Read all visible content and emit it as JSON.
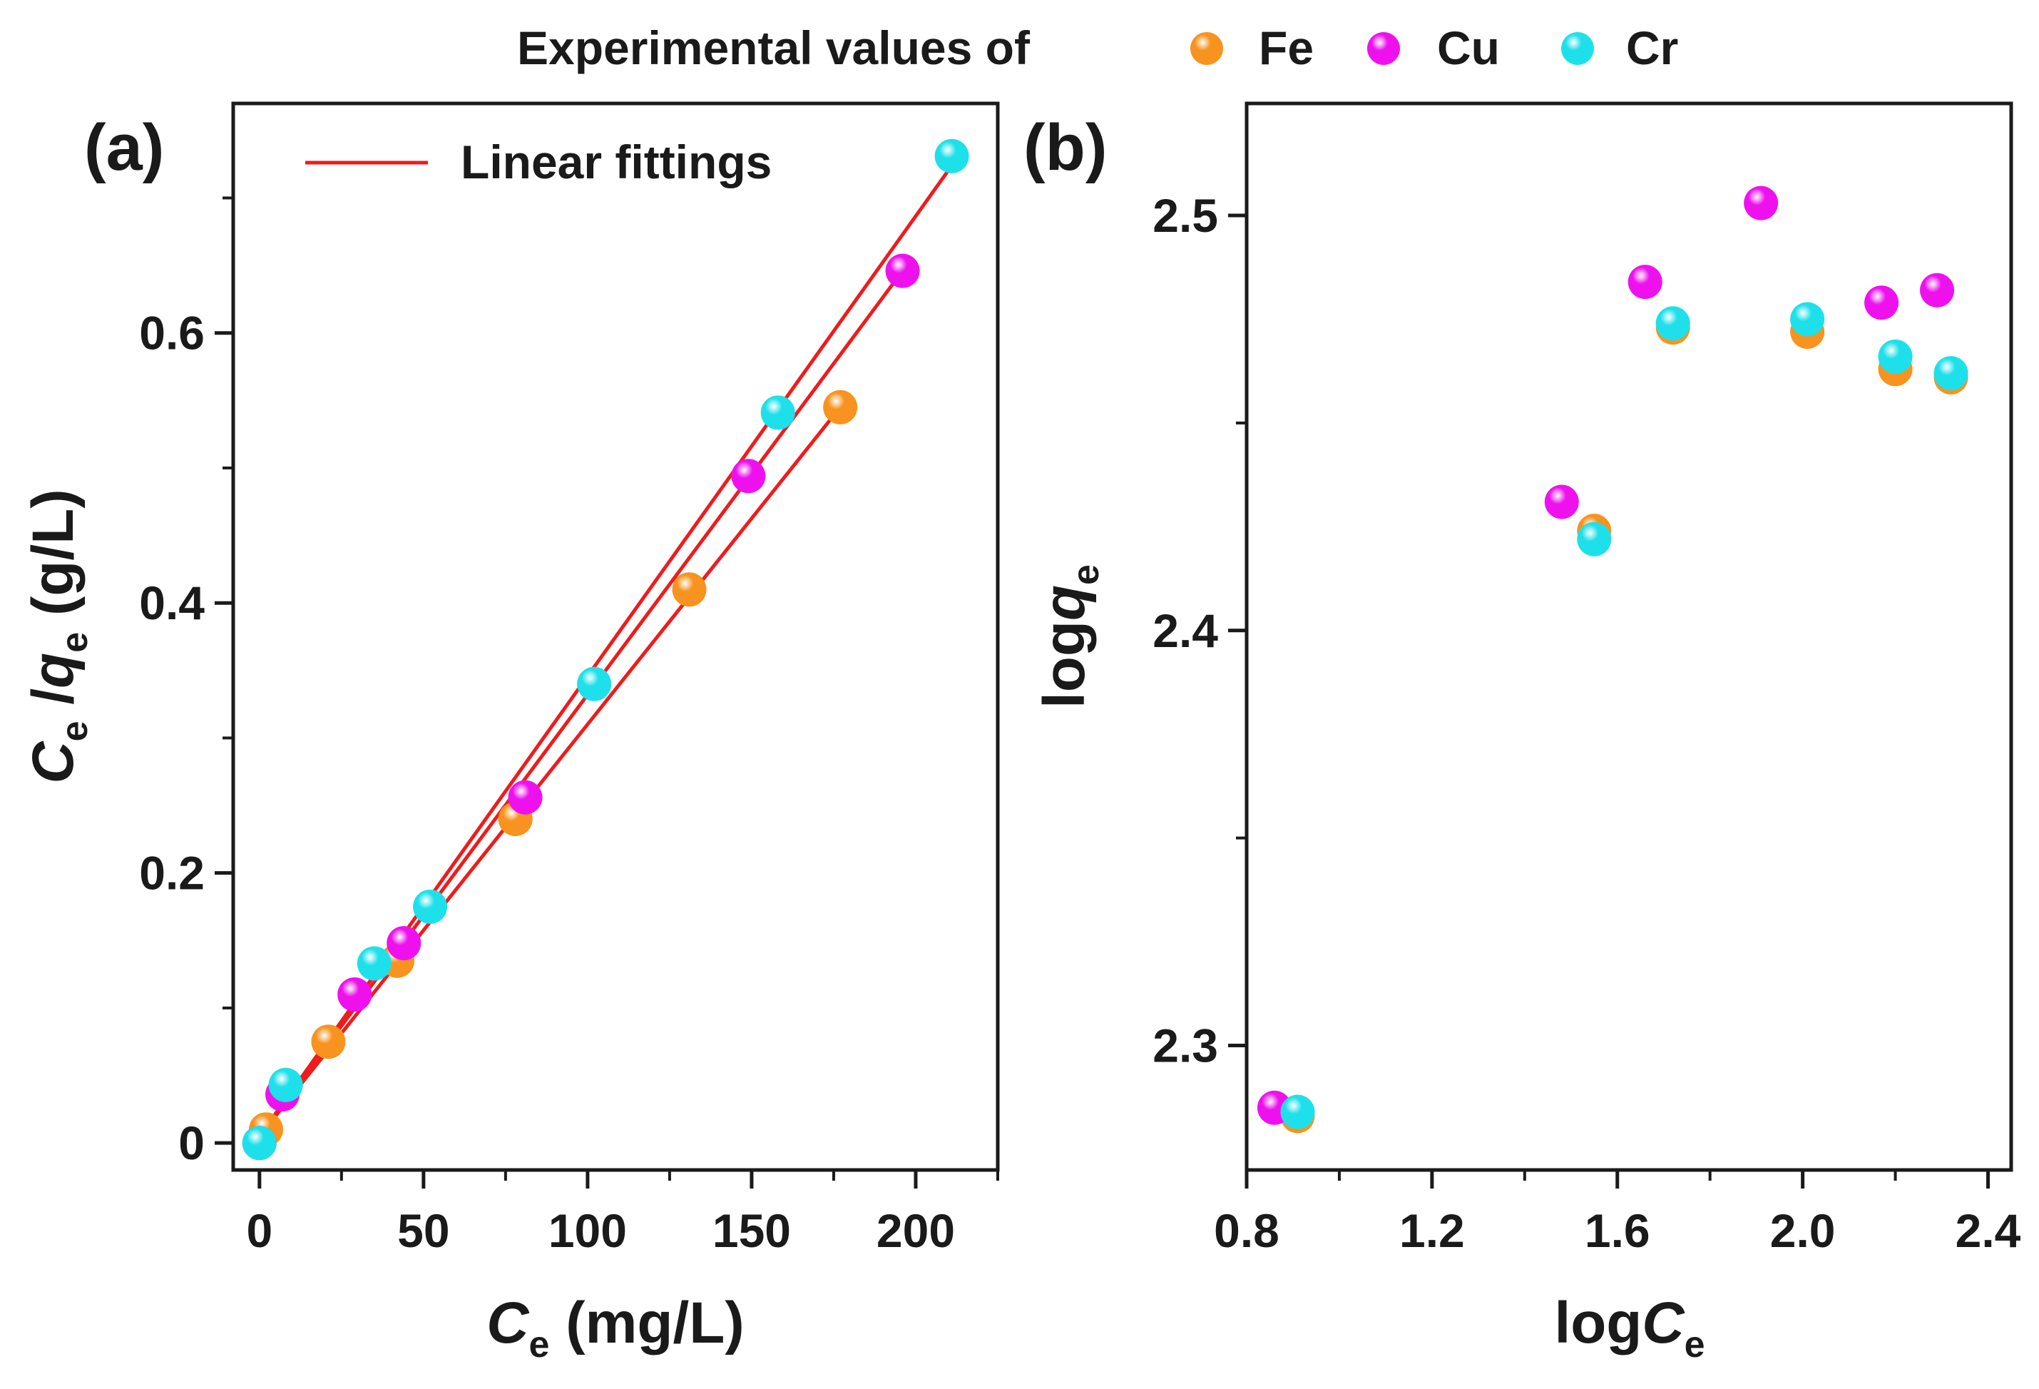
{
  "legend_top": {
    "prefix": "Experimental values of",
    "series": [
      {
        "name": "Fe",
        "color": "#f7931e"
      },
      {
        "name": "Cu",
        "color": "#ee11ee"
      },
      {
        "name": "Cr",
        "color": "#1ee0ea"
      }
    ]
  },
  "chart_data": [
    {
      "panel_label": "(a)",
      "type": "scatter",
      "xlabel": {
        "main": "C",
        "sub": "e",
        "rest": " (mg/L)"
      },
      "ylabel": {
        "main1": "C",
        "sub1": "e",
        "sep": " /",
        "main2": "q",
        "sub2": "e",
        "rest": " (g/L)"
      },
      "xlim": [
        -8,
        225
      ],
      "ylim": [
        -0.02,
        0.77
      ],
      "xticks": [
        0,
        50,
        100,
        150,
        200
      ],
      "xtick_labels": [
        "0",
        "50",
        "100",
        "150",
        "200"
      ],
      "yticks": [
        0,
        0.2,
        0.4,
        0.6
      ],
      "ytick_labels": [
        "0",
        "0.2",
        "0.4",
        "0.6"
      ],
      "legend": {
        "label": "Linear fittings",
        "color": "#ee1c1c",
        "position": "top-left"
      },
      "series": [
        {
          "name": "Fe",
          "color": "#f7931e",
          "x": [
            0,
            2,
            21,
            42,
            78,
            131,
            177
          ],
          "y": [
            0,
            0.01,
            0.075,
            0.135,
            0.24,
            0.41,
            0.545
          ],
          "fit": {
            "x": [
              0,
              177
            ],
            "y": [
              0.005,
              0.545
            ]
          }
        },
        {
          "name": "Cu",
          "color": "#ee11ee",
          "x": [
            0,
            7,
            29,
            44,
            81,
            149,
            196
          ],
          "y": [
            0,
            0.036,
            0.11,
            0.148,
            0.256,
            0.494,
            0.646
          ],
          "fit": {
            "x": [
              0,
              196
            ],
            "y": [
              0.005,
              0.646
            ]
          }
        },
        {
          "name": "Cr",
          "color": "#1ee0ea",
          "x": [
            0,
            8,
            35,
            52,
            102,
            158,
            211
          ],
          "y": [
            0,
            0.043,
            0.133,
            0.175,
            0.34,
            0.541,
            0.731
          ],
          "fit": {
            "x": [
              0,
              211
            ],
            "y": [
              0.005,
              0.724
            ]
          }
        }
      ]
    },
    {
      "panel_label": "(b)",
      "type": "scatter",
      "xlabel": {
        "main": "log",
        "italic": "C",
        "sub": "e"
      },
      "ylabel": {
        "main": "log",
        "italic": "q",
        "sub": "e"
      },
      "xlim": [
        0.8,
        2.45
      ],
      "ylim": [
        2.27,
        2.527
      ],
      "xticks": [
        0.8,
        1.2,
        1.6,
        2.0,
        2.4
      ],
      "xtick_labels": [
        "0.8",
        "1.2",
        "1.6",
        "2.0",
        "2.4"
      ],
      "yticks": [
        2.3,
        2.4,
        2.5
      ],
      "ytick_labels": [
        "2.3",
        "2.4",
        "2.5"
      ],
      "series": [
        {
          "name": "Fe",
          "color": "#f7931e",
          "x": [
            0.91,
            1.55,
            1.72,
            2.01,
            2.2,
            2.32
          ],
          "y": [
            2.283,
            2.424,
            2.473,
            2.472,
            2.463,
            2.461
          ]
        },
        {
          "name": "Cu",
          "color": "#ee11ee",
          "x": [
            0.86,
            1.48,
            1.66,
            1.91,
            2.17,
            2.29
          ],
          "y": [
            2.285,
            2.431,
            2.484,
            2.503,
            2.479,
            2.482
          ]
        },
        {
          "name": "Cr",
          "color": "#1ee0ea",
          "x": [
            0.91,
            1.55,
            1.72,
            2.01,
            2.2,
            2.32
          ],
          "y": [
            2.284,
            2.422,
            2.474,
            2.475,
            2.466,
            2.462
          ]
        }
      ]
    }
  ]
}
